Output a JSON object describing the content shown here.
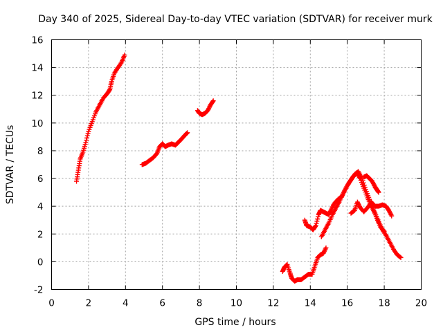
{
  "chart_data": {
    "type": "scatter",
    "title": "Day 340 of 2025, Sidereal Day-to-day VTEC variation (SDTVAR) for receiver murk",
    "xlabel": "GPS time / hours",
    "ylabel": "SDTVAR / TECUs",
    "xlim": [
      0,
      20
    ],
    "ylim": [
      -2,
      16
    ],
    "xticks": [
      "0",
      "2",
      "4",
      "6",
      "8",
      "10",
      "12",
      "14",
      "16",
      "18",
      "20"
    ],
    "yticks": [
      "-2",
      "0",
      "2",
      "4",
      "6",
      "8",
      "10",
      "12",
      "14",
      "16"
    ],
    "grid": true,
    "marker": "+",
    "color": "#ff0000",
    "series": [
      {
        "name": "segment-1",
        "points": [
          [
            1.35,
            5.8
          ],
          [
            1.45,
            6.6
          ],
          [
            1.55,
            7.4
          ],
          [
            1.7,
            7.9
          ],
          [
            1.85,
            8.6
          ],
          [
            2.0,
            9.4
          ],
          [
            2.2,
            10.1
          ],
          [
            2.4,
            10.8
          ],
          [
            2.6,
            11.3
          ],
          [
            2.8,
            11.8
          ],
          [
            3.0,
            12.1
          ],
          [
            3.15,
            12.4
          ],
          [
            3.25,
            13.0
          ],
          [
            3.4,
            13.6
          ],
          [
            3.6,
            14.0
          ],
          [
            3.8,
            14.4
          ],
          [
            3.95,
            14.9
          ]
        ]
      },
      {
        "name": "segment-2",
        "points": [
          [
            4.9,
            7.0
          ],
          [
            5.1,
            7.1
          ],
          [
            5.3,
            7.3
          ],
          [
            5.5,
            7.5
          ],
          [
            5.7,
            7.8
          ],
          [
            5.85,
            8.3
          ],
          [
            6.0,
            8.5
          ],
          [
            6.15,
            8.3
          ],
          [
            6.3,
            8.4
          ],
          [
            6.5,
            8.5
          ],
          [
            6.7,
            8.4
          ],
          [
            6.85,
            8.6
          ],
          [
            7.0,
            8.8
          ],
          [
            7.2,
            9.1
          ],
          [
            7.35,
            9.3
          ]
        ]
      },
      {
        "name": "segment-3",
        "points": [
          [
            7.9,
            10.9
          ],
          [
            8.0,
            10.7
          ],
          [
            8.15,
            10.6
          ],
          [
            8.3,
            10.7
          ],
          [
            8.45,
            10.9
          ],
          [
            8.6,
            11.3
          ],
          [
            8.75,
            11.6
          ]
        ]
      },
      {
        "name": "segment-4",
        "points": [
          [
            12.5,
            -0.7
          ],
          [
            12.6,
            -0.4
          ],
          [
            12.75,
            -0.2
          ],
          [
            12.9,
            -0.8
          ],
          [
            13.0,
            -1.2
          ],
          [
            13.15,
            -1.4
          ],
          [
            13.3,
            -1.3
          ],
          [
            13.5,
            -1.3
          ],
          [
            13.7,
            -1.1
          ],
          [
            13.9,
            -0.9
          ],
          [
            14.1,
            -0.9
          ],
          [
            14.25,
            -0.3
          ],
          [
            14.4,
            0.3
          ],
          [
            14.55,
            0.5
          ],
          [
            14.7,
            0.6
          ],
          [
            14.85,
            1.0
          ]
        ]
      },
      {
        "name": "segment-5",
        "points": [
          [
            13.7,
            3.0
          ],
          [
            13.8,
            2.6
          ],
          [
            14.0,
            2.5
          ],
          [
            14.15,
            2.3
          ],
          [
            14.3,
            2.6
          ],
          [
            14.45,
            3.4
          ],
          [
            14.55,
            3.7
          ],
          [
            14.7,
            3.6
          ],
          [
            14.85,
            3.5
          ],
          [
            15.0,
            3.4
          ],
          [
            15.15,
            3.8
          ],
          [
            15.3,
            4.2
          ],
          [
            15.5,
            4.5
          ],
          [
            15.7,
            4.7
          ],
          [
            15.9,
            5.2
          ],
          [
            16.1,
            5.7
          ],
          [
            16.3,
            6.1
          ],
          [
            16.5,
            6.4
          ],
          [
            16.7,
            6.0
          ],
          [
            16.9,
            5.3
          ],
          [
            17.1,
            4.6
          ],
          [
            17.3,
            4.0
          ],
          [
            17.5,
            3.5
          ],
          [
            17.7,
            2.9
          ],
          [
            17.9,
            2.3
          ],
          [
            18.1,
            1.9
          ],
          [
            18.3,
            1.4
          ],
          [
            18.5,
            0.9
          ],
          [
            18.7,
            0.5
          ],
          [
            18.9,
            0.3
          ]
        ]
      },
      {
        "name": "segment-6",
        "points": [
          [
            14.6,
            1.8
          ],
          [
            14.8,
            2.3
          ],
          [
            15.0,
            2.8
          ],
          [
            15.2,
            3.4
          ],
          [
            15.4,
            3.9
          ],
          [
            15.6,
            4.4
          ],
          [
            15.8,
            5.0
          ],
          [
            16.0,
            5.5
          ],
          [
            16.2,
            5.9
          ],
          [
            16.4,
            6.3
          ],
          [
            16.6,
            6.5
          ],
          [
            16.8,
            6.0
          ],
          [
            17.0,
            5.2
          ],
          [
            17.2,
            4.5
          ],
          [
            17.4,
            3.8
          ],
          [
            17.6,
            3.1
          ],
          [
            17.8,
            2.5
          ],
          [
            18.0,
            2.2
          ]
        ]
      },
      {
        "name": "segment-7",
        "points": [
          [
            16.2,
            3.5
          ],
          [
            16.4,
            3.7
          ],
          [
            16.55,
            4.3
          ],
          [
            16.7,
            3.9
          ],
          [
            16.9,
            3.6
          ],
          [
            17.1,
            3.9
          ],
          [
            17.3,
            4.3
          ],
          [
            17.5,
            4.0
          ],
          [
            17.7,
            4.0
          ],
          [
            17.9,
            4.1
          ],
          [
            18.1,
            4.0
          ],
          [
            18.25,
            3.7
          ],
          [
            18.4,
            3.3
          ]
        ]
      },
      {
        "name": "segment-8",
        "points": [
          [
            16.9,
            6.1
          ],
          [
            17.05,
            6.2
          ],
          [
            17.2,
            6.0
          ],
          [
            17.35,
            5.8
          ],
          [
            17.5,
            5.4
          ],
          [
            17.6,
            5.2
          ],
          [
            17.7,
            5.0
          ]
        ]
      }
    ]
  }
}
